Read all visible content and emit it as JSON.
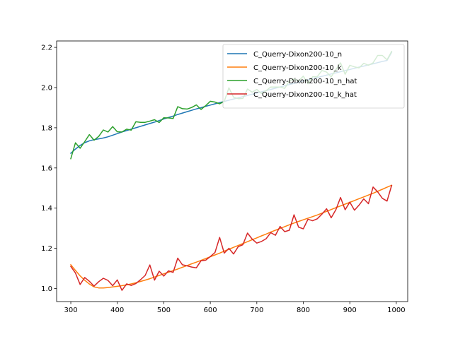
{
  "chart_data": {
    "type": "line",
    "title": "",
    "xlabel": "",
    "ylabel": "",
    "xlim": [
      269.5,
      1024.5
    ],
    "ylim": [
      0.935,
      2.232
    ],
    "xticks": [
      300,
      400,
      500,
      600,
      700,
      800,
      900,
      1000
    ],
    "yticks": [
      1.0,
      1.2,
      1.4,
      1.6,
      1.8,
      2.0,
      2.2
    ],
    "ytick_labels": [
      "1.0",
      "1.2",
      "1.4",
      "1.6",
      "1.8",
      "2.0",
      "2.2"
    ],
    "grid": false,
    "legend_position": "top-right",
    "x": [
      300,
      310,
      320,
      330,
      340,
      350,
      360,
      370,
      380,
      390,
      400,
      410,
      420,
      430,
      440,
      450,
      460,
      470,
      480,
      490,
      500,
      510,
      520,
      530,
      540,
      550,
      560,
      570,
      580,
      590,
      600,
      610,
      620,
      630,
      640,
      650,
      660,
      670,
      680,
      690,
      700,
      710,
      720,
      730,
      740,
      750,
      760,
      770,
      780,
      790,
      800,
      810,
      820,
      830,
      840,
      850,
      860,
      870,
      880,
      890,
      900,
      910,
      920,
      930,
      940,
      950,
      960,
      970,
      980,
      990
    ],
    "series": [
      {
        "name": "C_Querry-Dixon200-10_n",
        "color": "#1f77b4",
        "values": [
          1.673,
          1.694,
          1.712,
          1.726,
          1.735,
          1.741,
          1.745,
          1.749,
          1.755,
          1.763,
          1.771,
          1.779,
          1.786,
          1.793,
          1.8,
          1.807,
          1.814,
          1.821,
          1.828,
          1.836,
          1.844,
          1.851,
          1.858,
          1.866,
          1.873,
          1.88,
          1.887,
          1.894,
          1.9,
          1.907,
          1.913,
          1.919,
          1.925,
          1.931,
          1.937,
          1.943,
          1.949,
          1.955,
          1.961,
          1.967,
          1.973,
          1.979,
          1.985,
          1.991,
          1.997,
          2.003,
          2.009,
          2.015,
          2.021,
          2.027,
          2.033,
          2.039,
          2.045,
          2.05,
          2.056,
          2.062,
          2.068,
          2.073,
          2.079,
          2.085,
          2.09,
          2.096,
          2.102,
          2.107,
          2.113,
          2.118,
          2.124,
          2.13,
          2.135,
          2.175
        ]
      },
      {
        "name": "C_Querry-Dixon200-10_k",
        "color": "#ff7f0e",
        "values": [
          1.118,
          1.09,
          1.063,
          1.041,
          1.022,
          1.008,
          1.003,
          1.003,
          1.005,
          1.008,
          1.011,
          1.014,
          1.018,
          1.023,
          1.029,
          1.035,
          1.042,
          1.049,
          1.057,
          1.065,
          1.073,
          1.081,
          1.089,
          1.097,
          1.106,
          1.114,
          1.123,
          1.131,
          1.14,
          1.149,
          1.158,
          1.167,
          1.176,
          1.186,
          1.195,
          1.205,
          1.214,
          1.224,
          1.233,
          1.243,
          1.252,
          1.262,
          1.271,
          1.281,
          1.29,
          1.299,
          1.308,
          1.317,
          1.326,
          1.334,
          1.342,
          1.35,
          1.358,
          1.366,
          1.375,
          1.384,
          1.393,
          1.402,
          1.411,
          1.42,
          1.429,
          1.438,
          1.447,
          1.456,
          1.465,
          1.474,
          1.484,
          1.494,
          1.504,
          1.514
        ]
      },
      {
        "name": "C_Querry-Dixon200-10_n_hat",
        "color": "#2ca02c",
        "values": [
          1.646,
          1.725,
          1.698,
          1.731,
          1.766,
          1.738,
          1.757,
          1.789,
          1.779,
          1.806,
          1.78,
          1.779,
          1.793,
          1.788,
          1.83,
          1.827,
          1.827,
          1.833,
          1.84,
          1.826,
          1.85,
          1.849,
          1.846,
          1.905,
          1.895,
          1.893,
          1.901,
          1.914,
          1.891,
          1.91,
          1.932,
          1.928,
          1.919,
          1.931,
          1.999,
          1.952,
          1.945,
          1.946,
          1.993,
          1.977,
          1.991,
          1.97,
          1.985,
          2.003,
          2.003,
          2.003,
          1.996,
          2.033,
          2.043,
          2.033,
          2.057,
          2.019,
          2.054,
          2.054,
          2.085,
          2.077,
          2.053,
          2.089,
          2.123,
          2.066,
          2.111,
          2.103,
          2.098,
          2.121,
          2.111,
          2.123,
          2.16,
          2.16,
          2.138,
          2.18
        ]
      },
      {
        "name": "C_Querry-Dixon200-10_k_hat",
        "color": "#d62728",
        "values": [
          1.11,
          1.077,
          1.02,
          1.055,
          1.036,
          1.012,
          1.034,
          1.051,
          1.04,
          1.014,
          1.043,
          0.991,
          1.023,
          1.015,
          1.025,
          1.044,
          1.065,
          1.117,
          1.042,
          1.086,
          1.062,
          1.088,
          1.08,
          1.151,
          1.118,
          1.113,
          1.107,
          1.103,
          1.138,
          1.141,
          1.159,
          1.179,
          1.254,
          1.176,
          1.2,
          1.172,
          1.208,
          1.218,
          1.276,
          1.246,
          1.226,
          1.234,
          1.248,
          1.278,
          1.265,
          1.309,
          1.283,
          1.29,
          1.367,
          1.305,
          1.297,
          1.345,
          1.337,
          1.347,
          1.37,
          1.397,
          1.352,
          1.392,
          1.453,
          1.392,
          1.43,
          1.39,
          1.415,
          1.446,
          1.422,
          1.505,
          1.481,
          1.449,
          1.435,
          1.513
        ]
      }
    ]
  }
}
